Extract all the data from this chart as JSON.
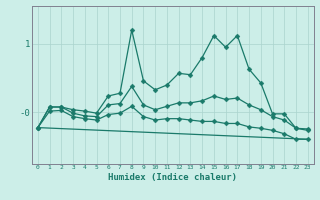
{
  "xlabel": "Humidex (Indice chaleur)",
  "background_color": "#cceee8",
  "grid_color": "#aad4ce",
  "line_color": "#1a7a6a",
  "xlim": [
    -0.5,
    23.5
  ],
  "ylim": [
    -0.75,
    1.55
  ],
  "ytick_positions": [
    1.0,
    0.0
  ],
  "ytick_labels": [
    "1",
    "-0"
  ],
  "xticks": [
    0,
    1,
    2,
    3,
    4,
    5,
    6,
    7,
    8,
    9,
    10,
    11,
    12,
    13,
    14,
    15,
    16,
    17,
    18,
    19,
    20,
    21,
    22,
    23
  ],
  "line1_x": [
    0,
    1,
    2,
    3,
    4,
    5,
    6,
    7,
    8,
    9,
    10,
    11,
    12,
    13,
    14,
    15,
    16,
    17,
    18,
    19,
    20,
    21,
    22,
    23
  ],
  "line1_y": [
    -0.22,
    0.08,
    0.08,
    0.04,
    0.02,
    -0.01,
    0.24,
    0.28,
    1.2,
    0.46,
    0.33,
    0.4,
    0.57,
    0.55,
    0.8,
    1.12,
    0.95,
    1.12,
    0.63,
    0.43,
    -0.02,
    -0.02,
    -0.23,
    -0.24
  ],
  "line2_x": [
    0,
    1,
    2,
    3,
    4,
    5,
    6,
    7,
    8,
    9,
    10,
    11,
    12,
    13,
    14,
    15,
    16,
    17,
    18,
    19,
    20,
    21,
    22,
    23
  ],
  "line2_y": [
    -0.22,
    0.08,
    0.08,
    -0.01,
    -0.05,
    -0.06,
    0.11,
    0.13,
    0.38,
    0.11,
    0.04,
    0.09,
    0.14,
    0.14,
    0.17,
    0.24,
    0.19,
    0.21,
    0.11,
    0.04,
    -0.06,
    -0.11,
    -0.23,
    -0.26
  ],
  "line3_x": [
    0,
    1,
    2,
    3,
    4,
    5,
    6,
    7,
    8,
    9,
    10,
    11,
    12,
    13,
    14,
    15,
    16,
    17,
    18,
    19,
    20,
    21,
    22,
    23
  ],
  "line3_y": [
    -0.22,
    0.02,
    0.03,
    -0.06,
    -0.09,
    -0.11,
    -0.03,
    -0.01,
    0.09,
    -0.06,
    -0.11,
    -0.09,
    -0.09,
    -0.11,
    -0.13,
    -0.13,
    -0.16,
    -0.16,
    -0.21,
    -0.23,
    -0.26,
    -0.31,
    -0.39,
    -0.39
  ],
  "line4_x": [
    0,
    23
  ],
  "line4_y": [
    -0.22,
    -0.39
  ]
}
